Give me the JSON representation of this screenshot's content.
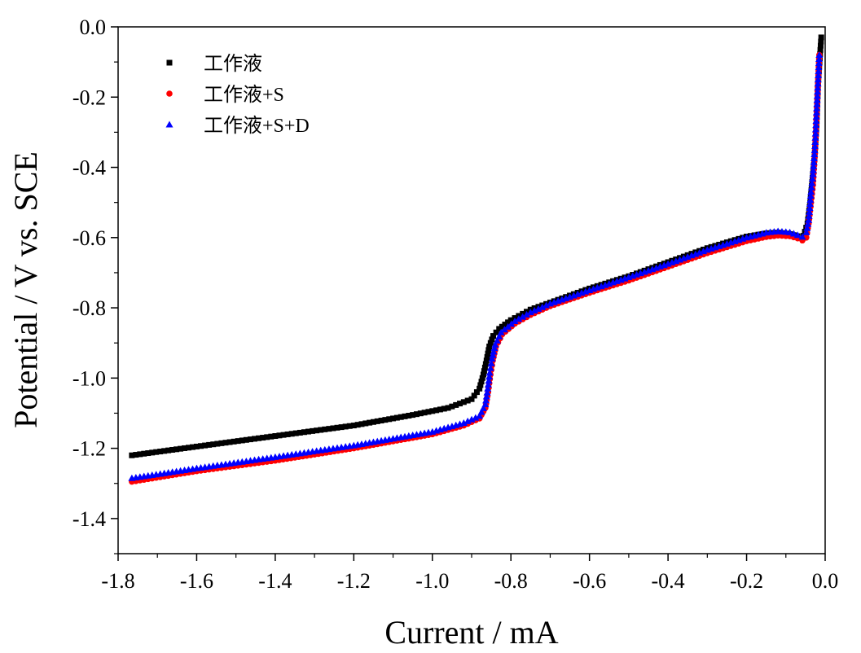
{
  "chart_data": {
    "type": "scatter",
    "title": "",
    "xlabel": "Current / mA",
    "ylabel": "Potential / V vs. SCE",
    "xlim": [
      -1.8,
      0.0
    ],
    "ylim": [
      -1.5,
      0.0
    ],
    "xticks": [
      "-1.8",
      "-1.6",
      "-1.4",
      "-1.2",
      "-1.0",
      "-0.8",
      "-0.6",
      "-0.4",
      "-0.2",
      "0.0"
    ],
    "yticks": [
      "0.0",
      "-0.2",
      "-0.4",
      "-0.6",
      "-0.8",
      "-1.0",
      "-1.2",
      "-1.4"
    ],
    "legend_position": "top-left",
    "series": [
      {
        "name": "工作液",
        "marker": "square",
        "color": "#000000",
        "points": [
          [
            -1.765,
            -1.22
          ],
          [
            -1.6,
            -1.195
          ],
          [
            -1.4,
            -1.165
          ],
          [
            -1.2,
            -1.135
          ],
          [
            -1.05,
            -1.105
          ],
          [
            -0.96,
            -1.085
          ],
          [
            -0.9,
            -1.06
          ],
          [
            -0.88,
            -1.03
          ],
          [
            -0.87,
            -0.99
          ],
          [
            -0.862,
            -0.95
          ],
          [
            -0.855,
            -0.91
          ],
          [
            -0.845,
            -0.88
          ],
          [
            -0.83,
            -0.86
          ],
          [
            -0.8,
            -0.835
          ],
          [
            -0.75,
            -0.805
          ],
          [
            -0.7,
            -0.785
          ],
          [
            -0.6,
            -0.745
          ],
          [
            -0.5,
            -0.71
          ],
          [
            -0.4,
            -0.67
          ],
          [
            -0.3,
            -0.63
          ],
          [
            -0.2,
            -0.597
          ],
          [
            -0.15,
            -0.588
          ],
          [
            -0.12,
            -0.586
          ],
          [
            -0.09,
            -0.59
          ],
          [
            -0.07,
            -0.596
          ],
          [
            -0.055,
            -0.595
          ],
          [
            -0.045,
            -0.56
          ],
          [
            -0.038,
            -0.5
          ],
          [
            -0.032,
            -0.43
          ],
          [
            -0.027,
            -0.37
          ],
          [
            -0.022,
            -0.28
          ],
          [
            -0.018,
            -0.16
          ],
          [
            -0.01,
            -0.03
          ]
        ]
      },
      {
        "name": "工作液+S",
        "marker": "circle",
        "color": "#ff0000",
        "points": [
          [
            -1.765,
            -1.295
          ],
          [
            -1.6,
            -1.265
          ],
          [
            -1.4,
            -1.235
          ],
          [
            -1.2,
            -1.2
          ],
          [
            -1.0,
            -1.16
          ],
          [
            -0.92,
            -1.135
          ],
          [
            -0.88,
            -1.115
          ],
          [
            -0.865,
            -1.085
          ],
          [
            -0.858,
            -1.04
          ],
          [
            -0.852,
            -0.99
          ],
          [
            -0.846,
            -0.95
          ],
          [
            -0.838,
            -0.91
          ],
          [
            -0.822,
            -0.875
          ],
          [
            -0.79,
            -0.845
          ],
          [
            -0.75,
            -0.82
          ],
          [
            -0.7,
            -0.795
          ],
          [
            -0.6,
            -0.757
          ],
          [
            -0.5,
            -0.722
          ],
          [
            -0.4,
            -0.683
          ],
          [
            -0.3,
            -0.644
          ],
          [
            -0.2,
            -0.61
          ],
          [
            -0.15,
            -0.598
          ],
          [
            -0.12,
            -0.594
          ],
          [
            -0.09,
            -0.596
          ],
          [
            -0.07,
            -0.602
          ],
          [
            -0.058,
            -0.608
          ],
          [
            -0.048,
            -0.6
          ],
          [
            -0.042,
            -0.56
          ],
          [
            -0.036,
            -0.5
          ],
          [
            -0.031,
            -0.45
          ],
          [
            -0.026,
            -0.36
          ],
          [
            -0.021,
            -0.23
          ],
          [
            -0.015,
            -0.08
          ]
        ]
      },
      {
        "name": "工作液+S+D",
        "marker": "triangle",
        "color": "#0000ff",
        "points": [
          [
            -1.765,
            -1.285
          ],
          [
            -1.6,
            -1.257
          ],
          [
            -1.4,
            -1.225
          ],
          [
            -1.2,
            -1.192
          ],
          [
            -1.0,
            -1.153
          ],
          [
            -0.92,
            -1.128
          ],
          [
            -0.88,
            -1.108
          ],
          [
            -0.865,
            -1.075
          ],
          [
            -0.859,
            -1.03
          ],
          [
            -0.854,
            -0.985
          ],
          [
            -0.848,
            -0.945
          ],
          [
            -0.84,
            -0.905
          ],
          [
            -0.825,
            -0.87
          ],
          [
            -0.79,
            -0.838
          ],
          [
            -0.75,
            -0.813
          ],
          [
            -0.7,
            -0.788
          ],
          [
            -0.6,
            -0.75
          ],
          [
            -0.5,
            -0.713
          ],
          [
            -0.4,
            -0.675
          ],
          [
            -0.3,
            -0.635
          ],
          [
            -0.2,
            -0.6
          ],
          [
            -0.15,
            -0.586
          ],
          [
            -0.12,
            -0.582
          ],
          [
            -0.09,
            -0.585
          ],
          [
            -0.07,
            -0.593
          ],
          [
            -0.058,
            -0.598
          ],
          [
            -0.048,
            -0.585
          ],
          [
            -0.042,
            -0.55
          ],
          [
            -0.036,
            -0.47
          ],
          [
            -0.031,
            -0.42
          ],
          [
            -0.026,
            -0.34
          ],
          [
            -0.021,
            -0.22
          ],
          [
            -0.015,
            -0.08
          ]
        ]
      }
    ]
  }
}
